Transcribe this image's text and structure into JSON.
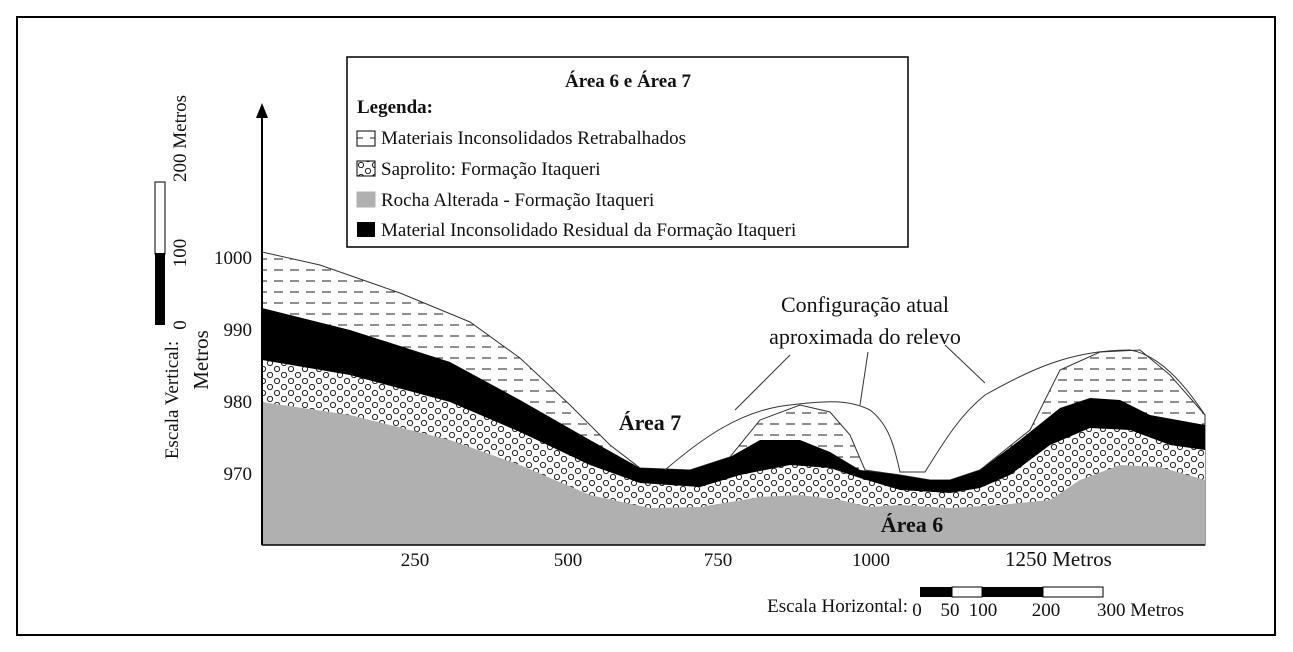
{
  "legend": {
    "title": "Área 6 e Área 7",
    "heading": "Legenda:",
    "items": [
      "Materiais Inconsolidados Retrabalhados",
      "Saprolito: Formação Itaqueri",
      "Rocha Alterada - Formação Itaqueri",
      "Material Inconsolidado Residual da Formação Itaqueri"
    ]
  },
  "axes": {
    "y_ticks": [
      "1000",
      "990",
      "980",
      "970"
    ],
    "x_ticks": [
      "250",
      "500",
      "750",
      "1000",
      "1250 Metros"
    ]
  },
  "vertical_scale": {
    "title": "Escala Vertical:",
    "unit": "Metros",
    "labels": [
      "0",
      "100",
      "200 Metros"
    ]
  },
  "horizontal_scale": {
    "title": "Escala Horizontal:",
    "labels": [
      "0",
      "50",
      "100",
      "200",
      "300 Metros"
    ]
  },
  "annotations": {
    "relief": [
      "Configuração atual",
      "aproximada do relevo"
    ],
    "area7": "Área 7",
    "area6": "Área 6"
  }
}
